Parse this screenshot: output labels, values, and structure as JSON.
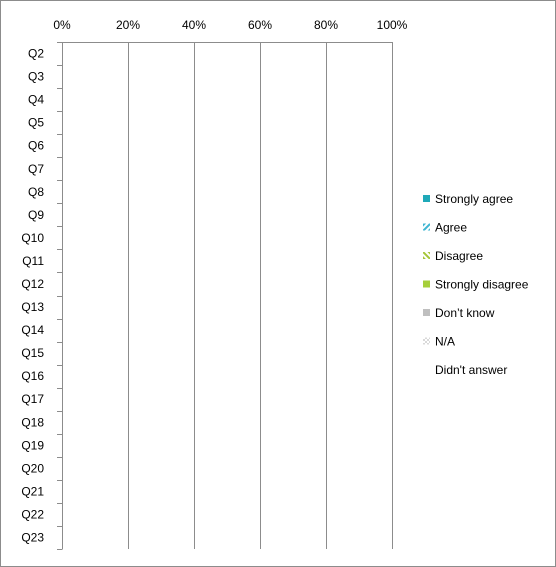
{
  "chart_data": {
    "type": "bar",
    "orientation": "horizontal",
    "stacked": true,
    "title": "",
    "xlabel": "",
    "ylabel": "",
    "xlim": [
      0,
      100
    ],
    "x_ticks": [
      "0%",
      "20%",
      "40%",
      "60%",
      "80%",
      "100%"
    ],
    "x_tick_values": [
      0,
      20,
      40,
      60,
      80,
      100
    ],
    "x_axis_position": "top",
    "grid": "vertical major gridlines",
    "categories": [
      "Q2",
      "Q3",
      "Q4",
      "Q5",
      "Q6",
      "Q7",
      "Q8",
      "Q9",
      "Q10",
      "Q11",
      "Q12",
      "Q13",
      "Q14",
      "Q15",
      "Q16",
      "Q17",
      "Q18",
      "Q19",
      "Q20",
      "Q21",
      "Q22",
      "Q23"
    ],
    "series": [
      {
        "name": "Strongly agree",
        "color": "#1fa9b8",
        "pattern": "solid",
        "values": [
          0,
          0,
          0,
          0,
          0,
          0,
          0,
          0,
          0,
          0,
          0,
          0,
          0,
          0,
          0,
          0,
          0,
          0,
          0,
          0,
          0,
          0
        ]
      },
      {
        "name": "Agree",
        "color": "#3fb6d2",
        "pattern": "diagonal-hatch",
        "values": [
          0,
          0,
          0,
          0,
          0,
          0,
          0,
          0,
          0,
          0,
          0,
          0,
          0,
          0,
          0,
          0,
          0,
          0,
          0,
          0,
          0,
          0
        ]
      },
      {
        "name": "Disagree",
        "color": "#a6c63a",
        "pattern": "diagonal-hatch",
        "values": [
          0,
          0,
          0,
          0,
          0,
          0,
          0,
          0,
          0,
          0,
          0,
          0,
          0,
          0,
          0,
          0,
          0,
          0,
          0,
          0,
          0,
          0
        ]
      },
      {
        "name": "Strongly disagree",
        "color": "#a6cf3a",
        "pattern": "solid",
        "values": [
          0,
          0,
          0,
          0,
          0,
          0,
          0,
          0,
          0,
          0,
          0,
          0,
          0,
          0,
          0,
          0,
          0,
          0,
          0,
          0,
          0,
          0
        ]
      },
      {
        "name": "Don’t know",
        "color": "#bfbfbf",
        "pattern": "solid",
        "values": [
          0,
          0,
          0,
          0,
          0,
          0,
          0,
          0,
          0,
          0,
          0,
          0,
          0,
          0,
          0,
          0,
          0,
          0,
          0,
          0,
          0,
          0
        ]
      },
      {
        "name": "N/A",
        "color": "#d9d9d9",
        "pattern": "checker",
        "values": [
          0,
          0,
          0,
          0,
          0,
          0,
          0,
          0,
          0,
          0,
          0,
          0,
          0,
          0,
          0,
          0,
          0,
          0,
          0,
          0,
          0,
          0
        ]
      },
      {
        "name": "Didn't answer",
        "color": "#ffffff",
        "pattern": "none",
        "values": [
          0,
          0,
          0,
          0,
          0,
          0,
          0,
          0,
          0,
          0,
          0,
          0,
          0,
          0,
          0,
          0,
          0,
          0,
          0,
          0,
          0,
          0
        ]
      }
    ],
    "legend_position": "right"
  }
}
